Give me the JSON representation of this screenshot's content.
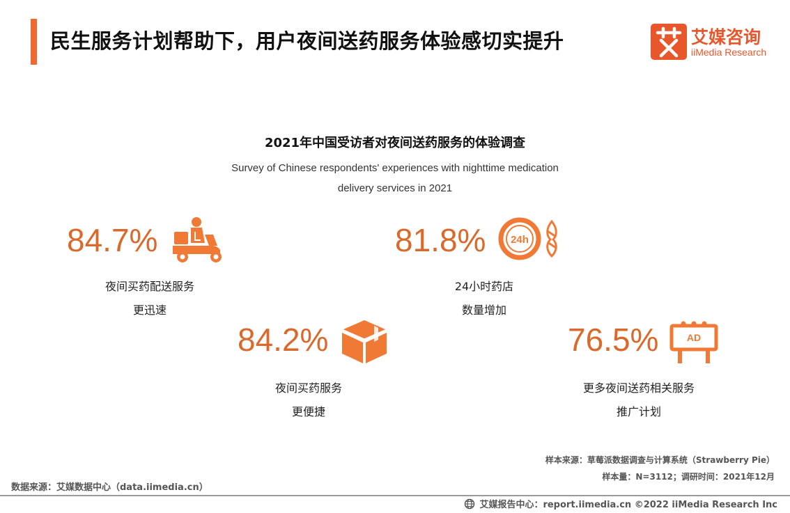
{
  "header": {
    "title": "民生服务计划帮助下，用户夜间送药服务体验感切实提升",
    "logo_cn": "艾媒咨询",
    "logo_en": "iiMedia Research"
  },
  "chart_data": {
    "type": "table",
    "title": "2021年中国受访者对夜间送药服务的体验调查",
    "subtitle_lines": [
      "Survey of Chinese respondents' experiences with nighttime medication",
      "delivery services in 2021"
    ],
    "items": [
      {
        "value": 84.7,
        "display": "84.7%",
        "label_lines": [
          "夜间买药配送服务",
          "更迅速"
        ],
        "icon": "delivery-scooter-icon"
      },
      {
        "value": 81.8,
        "display": "81.8%",
        "label_lines": [
          "24小时药店",
          "数量增加"
        ],
        "icon": "24h-clock-icon"
      },
      {
        "value": 84.2,
        "display": "84.2%",
        "label_lines": [
          "夜间买药服务",
          "更便捷"
        ],
        "icon": "package-box-icon"
      },
      {
        "value": 76.5,
        "display": "76.5%",
        "label_lines": [
          "更多夜间送药相关服务",
          "推广计划"
        ],
        "icon": "ad-billboard-icon"
      }
    ],
    "unit": "%",
    "accent_color": "#d96a2b"
  },
  "icon_text": {
    "clock_label": "24h",
    "billboard_label": "AD"
  },
  "footer": {
    "sample_source": "样本来源：草莓派数据调查与计算系统（Strawberry Pie）",
    "sample_size": "样本量：N=3112；调研时间：2021年12月",
    "data_source": "数据来源：艾媒数据中心（data.iimedia.cn）",
    "copyright": "艾媒报告中心：report.iimedia.cn  ©2022  iiMedia Research Inc"
  }
}
